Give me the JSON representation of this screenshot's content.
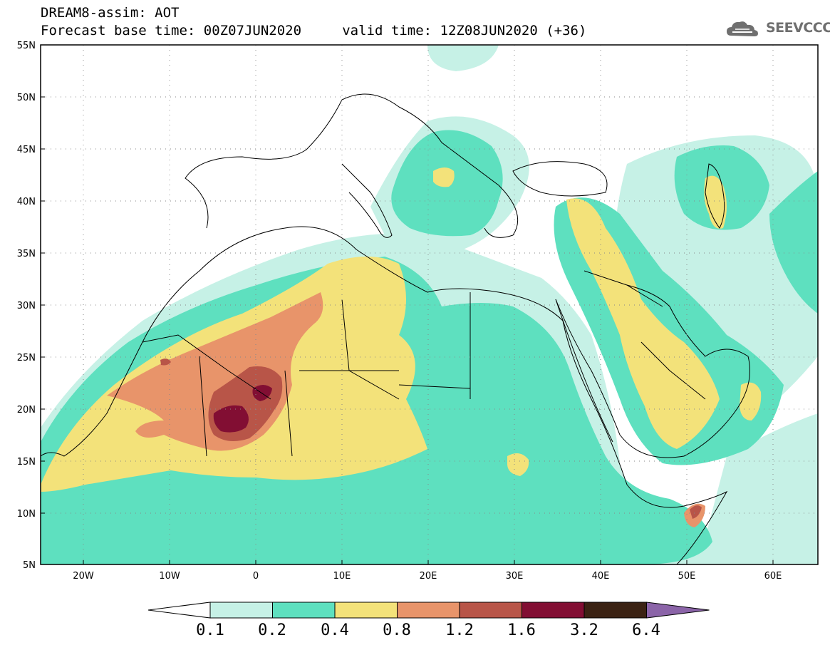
{
  "header": {
    "line1": "DREAM8-assim: AOT",
    "line2": "Forecast base time: 00Z07JUN2020     valid time: 12Z08JUN2020 (+36)"
  },
  "logo": {
    "text": "SEEVCCC",
    "icon": "cloud-icon",
    "color": "#6f6f6f"
  },
  "map": {
    "projection": "lat-lon",
    "lon_range": [
      -25,
      65
    ],
    "lat_range": [
      5,
      55
    ],
    "lat_ticks": [
      "5N",
      "10N",
      "15N",
      "20N",
      "25N",
      "30N",
      "35N",
      "40N",
      "45N",
      "50N",
      "55N"
    ],
    "lon_ticks": [
      "20W",
      "10W",
      "0",
      "10E",
      "20E",
      "30E",
      "40E",
      "50E",
      "60E"
    ],
    "field": "AOT",
    "grid": "dotted"
  },
  "colorbar": {
    "levels": [
      "0.1",
      "0.2",
      "0.4",
      "0.8",
      "1.2",
      "1.6",
      "3.2",
      "6.4"
    ],
    "colors": [
      "#ffffff",
      "#c6f1e6",
      "#5ee0bf",
      "#f3e27a",
      "#e8946a",
      "#b85548",
      "#820e33",
      "#3b2213",
      "#8b64a8"
    ]
  }
}
